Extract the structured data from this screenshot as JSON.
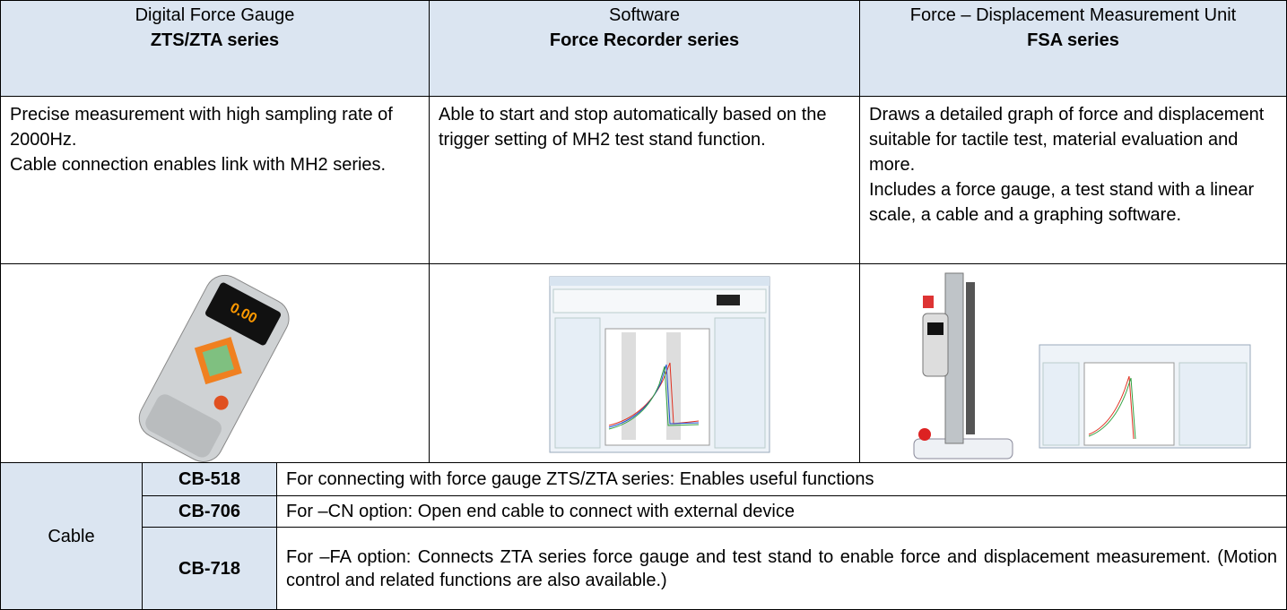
{
  "table": {
    "products": [
      {
        "category": "Digital Force Gauge",
        "name": "ZTS/ZTA series",
        "description": [
          "Precise measurement with high sampling rate of 2000Hz.",
          "Cable connection enables link with MH2 series."
        ]
      },
      {
        "category": "Software",
        "name": "Force Recorder series",
        "description": [
          "Able to start and stop automatically based on the trigger setting of MH2 test stand function."
        ]
      },
      {
        "category": "Force – Displacement Measurement Unit",
        "name": "FSA series",
        "description": [
          "Draws a detailed graph of force and displacement suitable for tactile test, material evaluation and more.",
          "Includes a force gauge, a test stand with a linear scale, a cable and a graphing software."
        ]
      }
    ],
    "cables": {
      "label": "Cable",
      "items": [
        {
          "model": "CB-518",
          "description": "For connecting with force gauge ZTS/ZTA series: Enables useful functions"
        },
        {
          "model": "CB-706",
          "description": "For –CN option: Open end cable to connect with external device"
        },
        {
          "model": "CB-718",
          "description": "For –FA option: Connects ZTA series force gauge and test stand to enable force and displacement measurement. (Motion control and related functions are also available.)"
        }
      ]
    }
  }
}
